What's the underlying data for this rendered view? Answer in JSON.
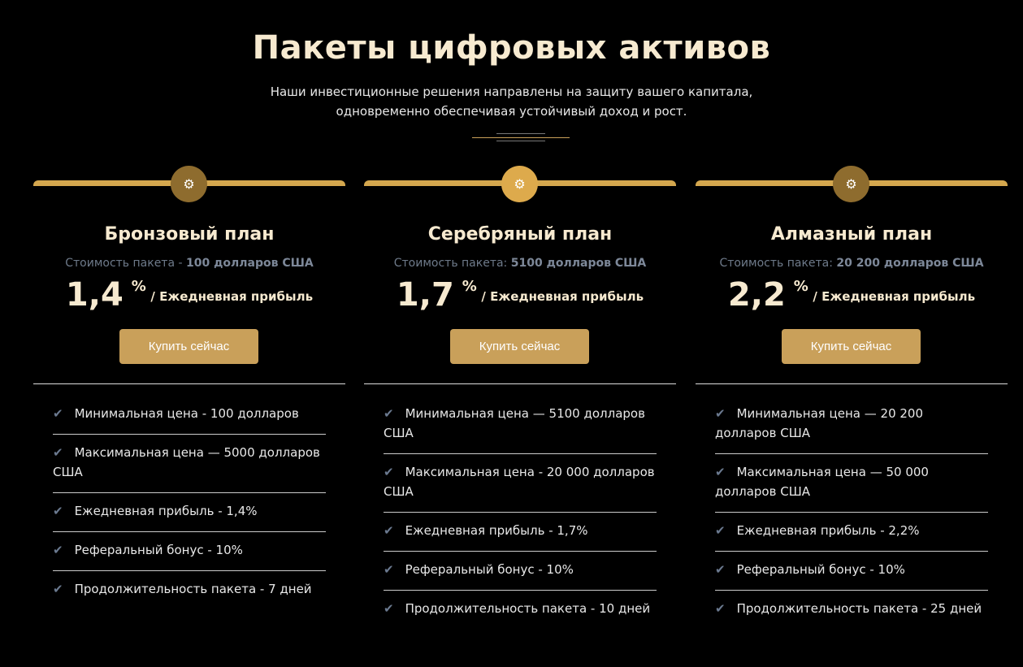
{
  "header": {
    "title": "Пакеты цифровых активов",
    "subtitle_line1": "Наши инвестиционные решения направлены на защиту вашего капитала,",
    "subtitle_line2": "одновременно обеспечивая устойчивый доход и рост."
  },
  "colors": {
    "accent": "#d4a74e",
    "button": "#c9a05a",
    "circle_bronze": "#8e6c2e",
    "circle_silver": "#ddaa4c",
    "text_title": "#f7ead0"
  },
  "plans": [
    {
      "icon": "gear-icon",
      "name": "Бронзовый план",
      "price_label": "Стоимость пакета - ",
      "price_value": "100 долларов США",
      "rate": "1,4",
      "pct": "%",
      "rate_label": "/ Ежедневная прибыль",
      "button": "Купить сейчас",
      "features": [
        "Минимальная цена - 100 долларов",
        "Максимальная цена — 5000 долларов США",
        "Ежедневная прибыль - 1,4%",
        "Реферальный бонус - 10%",
        "Продолжительность пакета - 7 дней"
      ]
    },
    {
      "icon": "gear-icon",
      "name": "Серебряный план",
      "price_label": "Стоимость пакета: ",
      "price_value": "5100 долларов США",
      "rate": "1,7",
      "pct": "%",
      "rate_label": "/ Ежедневная прибыль",
      "button": "Купить сейчас",
      "features": [
        "Минимальная цена — 5100 долларов США",
        "Максимальная цена - 20 000 долларов США",
        "Ежедневная прибыль - 1,7%",
        "Реферальный бонус - 10%",
        "Продолжительность пакета - 10 дней"
      ]
    },
    {
      "icon": "gear-icon",
      "name": "Алмазный план",
      "price_label": "Стоимость пакета: ",
      "price_value": "20 200 долларов США",
      "rate": "2,2",
      "pct": "%",
      "rate_label": "/ Ежедневная прибыль",
      "button": "Купить сейчас",
      "features": [
        "Минимальная цена — 20 200 долларов США",
        "Максимальная цена — 50 000 долларов США",
        "Ежедневная прибыль - 2,2%",
        "Реферальный бонус - 10%",
        "Продолжительность пакета - 25 дней"
      ]
    }
  ]
}
